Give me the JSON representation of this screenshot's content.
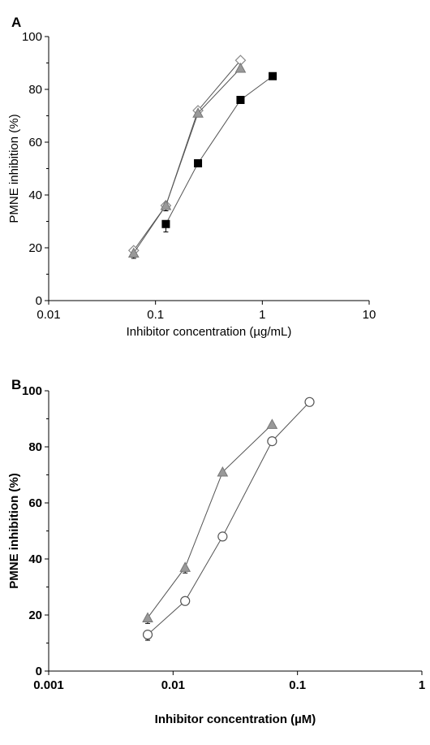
{
  "chart_data": [
    {
      "panel": "A",
      "type": "scatter",
      "xscale": "log",
      "xlim": [
        0.01,
        10
      ],
      "ylim": [
        0,
        100
      ],
      "xticks": [
        "0.01",
        "0.1",
        "1",
        "10"
      ],
      "yticks": [
        "0",
        "20",
        "40",
        "60",
        "80",
        "100"
      ],
      "xlabel": "Inhibitor concentration (µg/mL)",
      "ylabel": "PMNE inhibition (%)",
      "series": [
        {
          "marker": "diamond-open",
          "color": "#ffffff",
          "stroke": "#888888",
          "x": [
            0.0625,
            0.125,
            0.25,
            0.625
          ],
          "y": [
            19,
            36,
            72,
            91
          ],
          "err": [
            2,
            2,
            0,
            0
          ]
        },
        {
          "marker": "triangle-gray",
          "color": "#999999",
          "stroke": "#777777",
          "x": [
            0.0625,
            0.125,
            0.25,
            0.625
          ],
          "y": [
            18,
            36,
            71,
            88
          ],
          "err": [
            2,
            2,
            0,
            0
          ]
        },
        {
          "marker": "square-filled",
          "color": "#000000",
          "stroke": "#000000",
          "x": [
            0.125,
            0.25,
            0.625,
            1.25
          ],
          "y": [
            29,
            52,
            76,
            85
          ],
          "err": [
            3,
            0,
            0,
            0
          ]
        }
      ]
    },
    {
      "panel": "B",
      "type": "scatter",
      "xscale": "log",
      "xlim": [
        0.001,
        1
      ],
      "ylim": [
        0,
        100
      ],
      "xticks": [
        "0.001",
        "0.01",
        "0.1",
        "1"
      ],
      "yticks": [
        "0",
        "20",
        "40",
        "60",
        "80",
        "100"
      ],
      "xlabel": "Inhibitor concentration (µM)",
      "ylabel": "PMNE inhibition (%)",
      "series": [
        {
          "marker": "triangle-gray",
          "color": "#999999",
          "stroke": "#777777",
          "x": [
            0.00625,
            0.0125,
            0.025,
            0.0625
          ],
          "y": [
            19,
            37,
            71,
            88
          ],
          "err": [
            2,
            2,
            0,
            0
          ]
        },
        {
          "marker": "circle-open",
          "color": "#ffffff",
          "stroke": "#555555",
          "x": [
            0.00625,
            0.0125,
            0.025,
            0.0625,
            0.125
          ],
          "y": [
            13,
            25,
            48,
            82,
            96
          ],
          "err": [
            2,
            0,
            0,
            0,
            0
          ]
        }
      ]
    }
  ]
}
